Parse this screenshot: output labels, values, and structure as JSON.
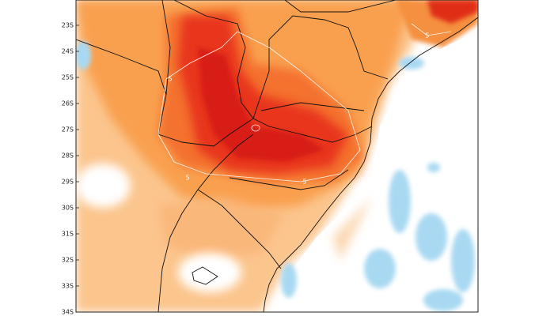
{
  "map": {
    "lat_labels": [
      "23S",
      "24S",
      "25S",
      "26S",
      "27S",
      "28S",
      "29S",
      "30S",
      "31S",
      "32S",
      "33S",
      "34S"
    ],
    "contour_labels": [
      "5",
      "5",
      "5",
      "5"
    ]
  }
}
